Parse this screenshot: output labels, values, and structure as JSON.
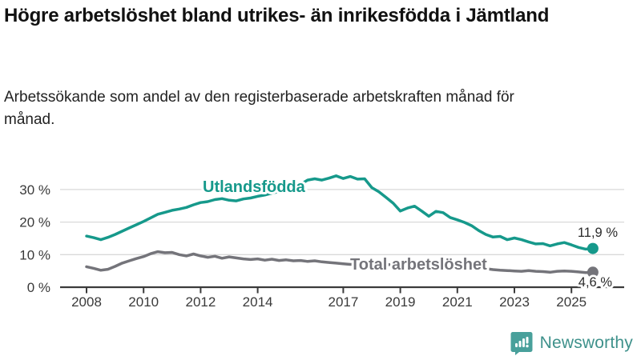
{
  "header": {
    "title": "Högre arbetslöshet bland utrikes- än inrikesfödda i Jämtland",
    "subtitle": "Arbetssökande som andel av den registerbaserade arbetskraften månad för månad."
  },
  "chart_data": {
    "type": "line",
    "x_start": 2008.0,
    "x_step": 0.25,
    "x_range": [
      2008.0,
      2025.75
    ],
    "ylim": [
      0,
      36
    ],
    "grid": "horizontal",
    "yticks": [
      {
        "value": 0,
        "label": "0 %"
      },
      {
        "value": 10,
        "label": "10 %"
      },
      {
        "value": 20,
        "label": "20 %"
      },
      {
        "value": 30,
        "label": "30 %"
      }
    ],
    "xticks": [
      {
        "value": 2008,
        "label": "2008"
      },
      {
        "value": 2010,
        "label": "2010"
      },
      {
        "value": 2012,
        "label": "2012"
      },
      {
        "value": 2014,
        "label": "2014"
      },
      {
        "value": 2017,
        "label": "2017"
      },
      {
        "value": 2019,
        "label": "2019"
      },
      {
        "value": 2021,
        "label": "2021"
      },
      {
        "value": 2023,
        "label": "2023"
      },
      {
        "value": 2025,
        "label": "2025"
      }
    ],
    "series": [
      {
        "name": "Utlandsfödda",
        "color": "#16998b",
        "end_label": "11,9 %",
        "end_value": 11.9,
        "values": [
          15.7,
          15.2,
          14.6,
          15.3,
          16.2,
          17.2,
          18.2,
          19.2,
          20.2,
          21.3,
          22.4,
          23.0,
          23.6,
          24.0,
          24.5,
          25.3,
          26.0,
          26.3,
          26.9,
          27.2,
          26.7,
          26.5,
          27.1,
          27.4,
          27.9,
          28.3,
          28.9,
          29.4,
          30.2,
          30.7,
          31.6,
          32.9,
          33.3,
          32.9,
          33.5,
          34.2,
          33.4,
          34.0,
          33.2,
          33.3,
          30.6,
          29.3,
          27.6,
          25.8,
          23.4,
          24.3,
          24.9,
          23.4,
          21.8,
          23.3,
          22.9,
          21.4,
          20.7,
          19.9,
          18.9,
          17.4,
          16.2,
          15.4,
          15.6,
          14.6,
          15.1,
          14.6,
          13.9,
          13.3,
          13.4,
          12.7,
          13.3,
          13.7,
          13.0,
          12.2,
          11.7,
          11.9
        ]
      },
      {
        "name": "Total arbetslöshet",
        "color": "#74747a",
        "end_label": "4,6 %",
        "end_value": 4.6,
        "values": [
          6.3,
          5.8,
          5.2,
          5.5,
          6.4,
          7.4,
          8.1,
          8.8,
          9.4,
          10.3,
          10.9,
          10.6,
          10.7,
          10.0,
          9.6,
          10.2,
          9.6,
          9.2,
          9.5,
          8.9,
          9.3,
          9.0,
          8.7,
          8.5,
          8.7,
          8.3,
          8.6,
          8.2,
          8.4,
          8.1,
          8.2,
          7.9,
          8.1,
          7.8,
          7.6,
          7.4,
          7.2,
          7.0,
          7.2,
          7.0,
          6.9,
          6.7,
          7.0,
          6.8,
          6.6,
          6.8,
          6.9,
          6.6,
          7.0,
          8.2,
          8.0,
          7.7,
          7.3,
          6.9,
          6.5,
          6.1,
          5.7,
          5.4,
          5.2,
          5.1,
          5.0,
          4.9,
          5.1,
          4.9,
          4.8,
          4.6,
          4.9,
          5.0,
          4.9,
          4.7,
          4.5,
          4.6
        ]
      }
    ],
    "colors": {
      "grid": "#d9d9d9",
      "axis": "#3b3b3b",
      "tick_label": "#3a3a3a",
      "annotation": "#2a2a2a"
    }
  },
  "footer": {
    "brand": "Newsworthy",
    "logo_icon": "bar-chart-speech-bubble-icon",
    "brand_color": "#3e918b",
    "logo_color": "#49a09b"
  }
}
